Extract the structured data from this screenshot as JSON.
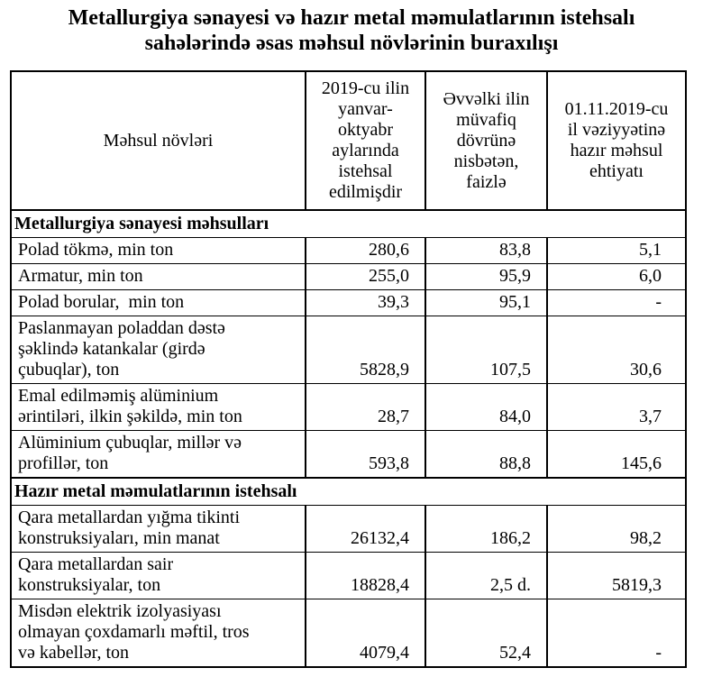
{
  "title": "Metallurgiya sənayesi və hazır metal məmulatlarının istehsalı\nsahələrində əsas məhsul növlərinin buraxılışı",
  "table": {
    "columns": [
      "Məhsul növləri",
      "2019-cu ilin\nyanvar-\noktyabr\naylarında\nistehsal\nedilmişdir",
      "Əvvəlki ilin\nmüvafiq\ndövrünə\nnisbətən,\nfaizlə",
      "01.11.2019-cu\nil vəziyyətinə\nhazır məhsul\nehtiyatı"
    ],
    "sections": [
      {
        "header": "Metallurgiya sənayesi məhsulları",
        "rows": [
          {
            "label": "Polad tökmə, min ton",
            "produced": "280,6",
            "percent": "83,8",
            "stock": "5,1"
          },
          {
            "label": "Armatur, min ton",
            "produced": "255,0",
            "percent": "95,9",
            "stock": "6,0"
          },
          {
            "label": "Polad borular,  min ton",
            "produced": "39,3",
            "percent": "95,1",
            "stock": "-"
          },
          {
            "label": "Paslanmayan poladdan dəstə\nşəklində katankalar (girdə\nçubuqlar), ton",
            "produced": "5828,9",
            "percent": "107,5",
            "stock": "30,6"
          },
          {
            "label": "Emal edilməmiş alüminium\nərintiləri, ilkin şəkildə, min ton",
            "produced": "28,7",
            "percent": "84,0",
            "stock": "3,7"
          },
          {
            "label": "Alüminium çubuqlar, millər və\nprofillər, ton",
            "produced": "593,8",
            "percent": "88,8",
            "stock": "145,6"
          }
        ]
      },
      {
        "header": "Hazır metal məmulatlarının istehsalı",
        "rows": [
          {
            "label": "Qara metallardan yığma tikinti\nkonstruksiyaları, min manat",
            "produced": "26132,4",
            "percent": "186,2",
            "stock": "98,2"
          },
          {
            "label": "Qara metallardan sair\nkonstruksiyalar, ton",
            "produced": "18828,4",
            "percent": "2,5 d.",
            "stock": "5819,3"
          },
          {
            "label": "Misdən elektrik izolyasiyası\nolmayan çoxdamarlı məftil, tros\nvə kabellər, ton",
            "produced": "4079,4",
            "percent": "52,4",
            "stock": "-"
          }
        ]
      }
    ]
  }
}
